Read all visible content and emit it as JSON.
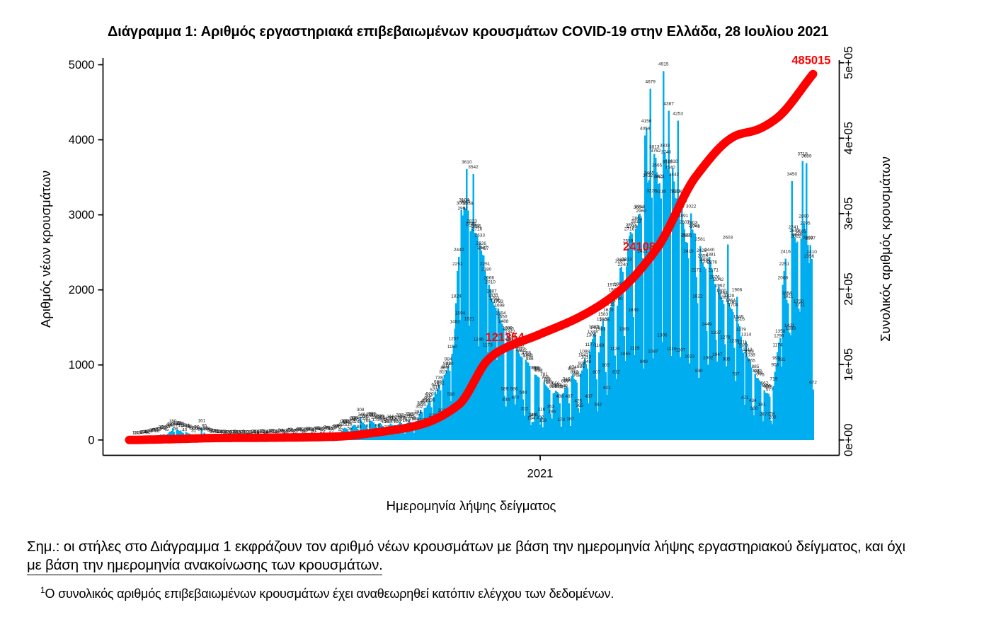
{
  "title": "Διάγραμμα 1: Αριθμός εργαστηριακά επιβεβαιωμένων κρουσμάτων COVID-19 στην Ελλάδα, 28 Ιουλίου 2021",
  "chart_data": {
    "type": "bar",
    "title": "Διάγραμμα 1: Αριθμός εργαστηριακά επιβεβαιωμένων κρουσμάτων COVID-19 στην Ελλάδα, 28 Ιουλίου 2021",
    "xlabel": "Ημερομηνία λήψης δείγματος",
    "ylabel_left": "Αριθμός νέων κρουσμάτων",
    "ylabel_right": "Συνολικός αριθμός κρουσμάτων",
    "x_start_date": "2020-02-26",
    "x_end_date": "2021-07-28",
    "x_ticks": [
      {
        "day": 310,
        "label": "2021"
      }
    ],
    "y_left_axis": {
      "ticks": [
        0,
        1000,
        2000,
        3000,
        4000,
        5000
      ],
      "range": [
        0,
        5000
      ]
    },
    "y_right_axis": {
      "ticks": [
        {
          "v": 0,
          "label": "0e+00"
        },
        {
          "v": 100000,
          "label": "1e+05"
        },
        {
          "v": 200000,
          "label": "2e+05"
        },
        {
          "v": 300000,
          "label": "3e+05"
        },
        {
          "v": 400000,
          "label": "4e+05"
        },
        {
          "v": 500000,
          "label": "5e+05"
        }
      ],
      "range": [
        0,
        500000
      ]
    },
    "bar_color": "#00AEEF",
    "line_color": "#FF0000",
    "label_color": "#1a1a1a",
    "series": [
      {
        "name": "Αριθμός νέων κρουσμάτων",
        "type": "bar",
        "values": [
          1,
          3,
          2,
          4,
          2,
          6,
          8,
          10,
          14,
          18,
          16,
          12,
          24,
          31,
          35,
          41,
          46,
          39,
          28,
          52,
          61,
          72,
          68,
          78,
          70,
          45,
          84,
          97,
          113,
          121,
          160,
          107,
          58,
          135,
          128,
          119,
          126,
          102,
          94,
          40,
          101,
          96,
          88,
          82,
          71,
          60,
          31,
          68,
          77,
          64,
          56,
          50,
          161,
          44,
          95,
          66,
          53,
          48,
          39,
          36,
          17,
          33,
          28,
          26,
          22,
          19,
          16,
          7,
          15,
          18,
          14,
          12,
          11,
          10,
          6,
          13,
          16,
          19,
          14,
          12,
          10,
          5,
          12,
          15,
          11,
          13,
          10,
          9,
          4,
          11,
          14,
          18,
          21,
          16,
          12,
          6,
          19,
          22,
          25,
          21,
          18,
          14,
          6,
          16,
          24,
          29,
          27,
          23,
          19,
          8,
          18,
          28,
          34,
          31,
          26,
          22,
          10,
          24,
          35,
          43,
          39,
          33,
          27,
          13,
          29,
          44,
          48,
          52,
          45,
          38,
          18,
          36,
          52,
          57,
          54,
          48,
          41,
          20,
          42,
          58,
          65,
          61,
          55,
          47,
          23,
          50,
          67,
          74,
          69,
          62,
          54,
          27,
          58,
          79,
          92,
          87,
          78,
          95,
          42,
          110,
          148,
          162,
          155,
          141,
          118,
          58,
          152,
          186,
          203,
          194,
          177,
          148,
          84,
          308,
          246,
          228,
          217,
          196,
          164,
          92,
          241,
          259,
          247,
          232,
          212,
          178,
          98,
          218,
          226,
          208,
          186,
          172,
          155,
          72,
          148,
          195,
          218,
          203,
          184,
          162,
          78,
          156,
          210,
          237,
          224,
          199,
          175,
          84,
          168,
          229,
          258,
          242,
          215,
          190,
          92,
          188,
          252,
          281,
          352,
          399,
          373,
          172,
          428,
          432,
          466,
          503,
          520,
          436,
          232,
          574,
          645,
          616,
          680,
          738,
          662,
          301,
          816,
          867,
          884,
          928,
          984,
          920,
          518,
          1150,
          1257,
          1482,
          1824,
          2252,
          2440,
          1594,
          3063,
          2992,
          3104,
          3085,
          3610,
          3059,
          1521,
          2786,
          2823,
          3542,
          2762,
          2756,
          2716,
          1246,
          2633,
          2526,
          2467,
          2457,
          2251,
          2180,
          1173,
          2066,
          2010,
          1887,
          1835,
          1793,
          1760,
          1062,
          1753,
          1698,
          1594,
          1550,
          1488,
          589,
          444,
          1399,
          1390,
          1347,
          1288,
          1257,
          586,
          473,
          1240,
          1176,
          1152,
          1117,
          1102,
          540,
          322,
          1068,
          1041,
          1031,
          986,
          194,
          240,
          244,
          868,
          866,
          846,
          833,
          207,
          316,
          169,
          781,
          738,
          713,
          695,
          668,
          353,
          286,
          622,
          628,
          656,
          640,
          621,
          488,
          178,
          618,
          630,
          689,
          715,
          699,
          487,
          187,
          856,
          874,
          812,
          798,
          768,
          425,
          365,
          886,
          929,
          1042,
          1088,
          1013,
          949,
          487,
          1177,
          1305,
          1348,
          1415,
          1402,
          807,
          382,
          1169,
          1383,
          1518,
          1583,
          1506,
          905,
          601,
          1639,
          1715,
          1771,
          1973,
          1907,
          1124,
          812,
          1790,
          1982,
          2287,
          2308,
          2240,
          1383,
          1055,
          2313,
          2559,
          2716,
          2770,
          2749,
          1639,
          1129,
          2819,
          2862,
          3004,
          3013,
          2960,
          2421,
          949,
          4058,
          4156,
          3432,
          3465,
          4679,
          3228,
          1087,
          3813,
          3762,
          3565,
          3412,
          3421,
          3216,
          1305,
          4915,
          3833,
          3740,
          3613,
          4387,
          3540,
          1119,
          3618,
          3442,
          3221,
          3218,
          4253,
          3019,
          1107,
          3089,
          2891,
          2807,
          2637,
          2631,
          2419,
          1023,
          3022,
          2803,
          2760,
          2749,
          2171,
          1822,
          830,
          2581,
          2429,
          2359,
          2306,
          2283,
          1449,
          1002,
          2440,
          2381,
          2276,
          2171,
          2076,
          1337,
          1047,
          2042,
          1962,
          1900,
          1864,
          1809,
          1278,
          985,
          2603,
          1829,
          1764,
          1741,
          1704,
          1230,
          787,
          1906,
          1549,
          1516,
          1379,
          1211,
          1163,
          471,
          1314,
          1113,
          1088,
          1038,
          965,
          434,
          330,
          885,
          830,
          822,
          797,
          776,
          381,
          247,
          662,
          628,
          626,
          618,
          577,
          258,
          209,
          719,
          906,
          999,
          1174,
          1296,
          1358,
          981,
          2068,
          2251,
          2416,
          1864,
          1821,
          1431,
          1393,
          3450,
          2741,
          2693,
          2622,
          2645,
          1750,
          1711,
          2685,
          3718,
          2890,
          2795,
          3689,
          2602,
          2356,
          2597,
          2410,
          672
        ]
      },
      {
        "name": "Συνολικός αριθμός κρουσμάτων",
        "type": "line",
        "values": [
          1,
          39,
          78,
          116,
          154,
          192,
          230,
          267,
          305,
          343,
          381,
          418,
          456,
          493,
          531,
          569,
          607,
          644,
          682,
          720,
          758,
          796,
          835,
          873,
          912,
          951,
          990,
          1029,
          1068,
          1108,
          1148,
          1188,
          1228,
          1269,
          1310,
          1352,
          1396,
          1442,
          1490,
          1539,
          1589,
          1640,
          1692,
          1745,
          1798,
          1851,
          1904,
          1957,
          2009,
          2061,
          2112,
          2162,
          2211,
          2259,
          2305,
          2349,
          2391,
          2430,
          2468,
          2503,
          2534,
          2563,
          2589,
          2611,
          2630,
          2646,
          2662,
          2676,
          2690,
          2703,
          2715,
          2727,
          2738,
          2748,
          2758,
          2768,
          2777,
          2786,
          2795,
          2803,
          2811,
          2819,
          2827,
          2835,
          2843,
          2852,
          2860,
          2868,
          2877,
          2886,
          2896,
          2905,
          2916,
          2927,
          2938,
          2950,
          2962,
          2975,
          2987,
          2999,
          3012,
          3024,
          3037,
          3050,
          3063,
          3076,
          3089,
          3102,
          3116,
          3130,
          3145,
          3159,
          3174,
          3189,
          3205,
          3221,
          3238,
          3255,
          3272,
          3290,
          3309,
          3328,
          3347,
          3368,
          3389,
          3410,
          3432,
          3455,
          3478,
          3502,
          3526,
          3551,
          3577,
          3604,
          3632,
          3661,
          3690,
          3721,
          3753,
          3786,
          3821,
          3857,
          3894,
          3932,
          3972,
          4014,
          4057,
          4102,
          4149,
          4197,
          4247,
          4299,
          4353,
          4409,
          4467,
          4528,
          4590,
          4660,
          4744,
          4839,
          4947,
          5067,
          5198,
          5339,
          5490,
          5650,
          5819,
          5997,
          6183,
          6376,
          6575,
          6781,
          6993,
          7210,
          7432,
          7657,
          7887,
          8119,
          8354,
          8592,
          8830,
          9070,
          9310,
          9550,
          9790,
          10028,
          10265,
          10500,
          10733,
          10966,
          11199,
          11432,
          11667,
          11903,
          12142,
          12384,
          12629,
          12878,
          13131,
          13390,
          13654,
          13924,
          14200,
          14484,
          14775,
          15074,
          15382,
          15700,
          16027,
          16364,
          16713,
          17073,
          17444,
          17828,
          18225,
          18636,
          19061,
          19500,
          19959,
          20444,
          20955,
          21491,
          22054,
          22644,
          23261,
          23904,
          24576,
          25275,
          26002,
          26758,
          27542,
          28355,
          29198,
          30070,
          30972,
          31904,
          32867,
          33860,
          34884,
          35940,
          37028,
          38147,
          39298,
          40482,
          41699,
          42949,
          44232,
          45549,
          46900,
          48424,
          50243,
          52329,
          54653,
          57189,
          59908,
          62784,
          65787,
          68891,
          72069,
          75291,
          78531,
          81760,
          84952,
          88078,
          91111,
          94023,
          96786,
          99373,
          101757,
          103908,
          105800,
          107512,
          109139,
          110680,
          112131,
          113491,
          114758,
          115928,
          117000,
          118003,
          118969,
          119901,
          120800,
          121667,
          122506,
          123317,
          124103,
          124866,
          125608,
          126329,
          127033,
          127722,
          128396,
          129059,
          129712,
          130356,
          130995,
          131629,
          132261,
          132892,
          133525,
          134161,
          134802,
          135451,
          136108,
          136777,
          137459,
          138155,
          138868,
          139600,
          140338,
          141069,
          141794,
          142514,
          143229,
          143941,
          144650,
          145358,
          146064,
          146770,
          147476,
          148184,
          148894,
          149607,
          150324,
          151046,
          151773,
          152507,
          153248,
          153997,
          154754,
          155522,
          156300,
          157089,
          157890,
          158704,
          159533,
          160375,
          161234,
          162108,
          163000,
          163905,
          164819,
          165743,
          166677,
          167622,
          168580,
          169549,
          170532,
          171529,
          172540,
          173567,
          174609,
          175668,
          176745,
          177839,
          178951,
          180083,
          181235,
          182408,
          183602,
          184818,
          186056,
          187318,
          188603,
          189914,
          191250,
          192611,
          194000,
          195421,
          196879,
          198375,
          199908,
          201477,
          203082,
          204723,
          206400,
          208112,
          209859,
          211640,
          213455,
          215305,
          217187,
          219103,
          221052,
          223034,
          225047,
          227093,
          229170,
          231278,
          233417,
          235586,
          237786,
          240015,
          242274,
          244562,
          246879,
          249225,
          251598,
          254000,
          256497,
          259150,
          261947,
          264877,
          267928,
          271090,
          274349,
          277695,
          281117,
          284602,
          288140,
          291719,
          295327,
          298952,
          302584,
          306211,
          309821,
          313403,
          316945,
          320436,
          323864,
          327219,
          330487,
          333658,
          336721,
          339663,
          342474,
          345141,
          347654,
          350000,
          352260,
          354517,
          356768,
          359011,
          361242,
          363457,
          365652,
          367826,
          369974,
          372093,
          374180,
          376231,
          378244,
          380214,
          382138,
          384013,
          385837,
          387604,
          389313,
          390959,
          392539,
          394051,
          395490,
          396854,
          398138,
          399340,
          400457,
          401485,
          402420,
          403259,
          404000,
          404651,
          405230,
          405747,
          406214,
          406641,
          407038,
          407416,
          407784,
          408155,
          408538,
          408943,
          409381,
          409863,
          410399,
          411000,
          411664,
          412382,
          413153,
          413976,
          414848,
          415769,
          416737,
          417750,
          418808,
          419908,
          421050,
          422231,
          423451,
          424708,
          426000,
          427365,
          428839,
          430414,
          432085,
          433845,
          435689,
          437611,
          439603,
          441661,
          443778,
          445948,
          448164,
          450422,
          452714,
          455034,
          457377,
          459736,
          462105,
          464479,
          466850,
          469214,
          471563,
          473891,
          476193,
          478463,
          480694,
          482880,
          485015
        ]
      }
    ],
    "annotations": [
      {
        "text": "121354",
        "day": 283.0,
        "y_right": 136700
      },
      {
        "text": "241083",
        "day": 388.0,
        "y_right": 256800
      },
      {
        "text": "485015",
        "day": 516.6,
        "y_right": 503900
      }
    ]
  },
  "notes": {
    "line1": "Σημ.:  οι στήλες στο Διάγραμμα 1 εκφράζουν τον αριθμό νέων κρουσμάτων με βάση την ημερομηνία λήψης εργαστηριακού δείγματος, και όχι",
    "line2": "με βάση την ημερομηνία ανακοίνωσης των κρουσμάτων."
  },
  "footnote": {
    "marker": "1",
    "text": "Ο συνολικός αριθμός επιβεβαιωμένων κρουσμάτων έχει αναθεωρηθεί κατόπιν ελέγχου των δεδομένων."
  }
}
